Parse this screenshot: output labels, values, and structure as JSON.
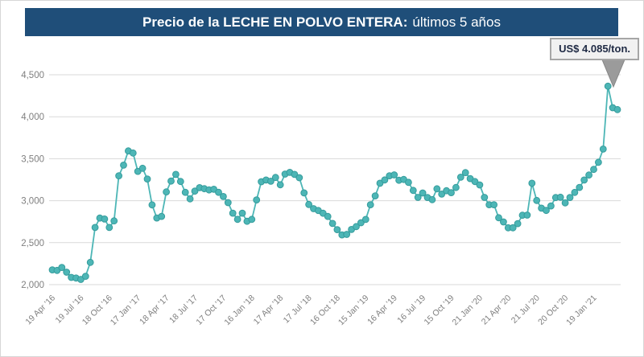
{
  "header": {
    "title_bold": "Precio de la LECHE EN POLVO ENTERA:",
    "title_regular": "últimos 5 años"
  },
  "callout": {
    "label": "US$ 4.085/ton."
  },
  "colors": {
    "banner_bg": "#1F4E79",
    "line": "#4DB6B6",
    "marker_edge": "#359C9C",
    "grid": "#D9D9D9",
    "axis_text": "#7F7F7F",
    "callout_bg": "#F1F1F1",
    "callout_border": "#A6A6A6",
    "pointer_gray": "#9B9B9B"
  },
  "chart_data": {
    "type": "line",
    "title": "Precio de la LECHE EN POLVO ENTERA: últimos 5 años",
    "unit": "US$/ton",
    "grid": true,
    "legend": false,
    "ylim": [
      2000,
      4500
    ],
    "y_ticks": [
      2000,
      2500,
      3000,
      3500,
      4000,
      4500
    ],
    "y_tick_labels": [
      "2,000",
      "2,500",
      "3,000",
      "3,500",
      "4,000",
      "4,500"
    ],
    "x_tick_every": 6,
    "x_tick_labels": [
      "19 Apr '16",
      "19 Jul '16",
      "18 Oct '16",
      "17 Jan '17",
      "18 Apr '17",
      "18 Jul '17",
      "17 Oct '17",
      "16 Jan '18",
      "17 Apr '18",
      "17 Jul '18",
      "16 Oct '18",
      "15 Jan '19",
      "16 Apr '19",
      "16 Jul '19",
      "15 Oct '19",
      "21 Jan '20",
      "21 Apr '20",
      "21 Jul '20",
      "20 Oct '20",
      "19 Jan '21"
    ],
    "last_value_label": "US$ 4.085/ton.",
    "last_value": 4085,
    "series": [
      {
        "name": "Precio leche en polvo entera (US$/ton)",
        "color": "#4DB6B6",
        "values": [
          2176,
          2170,
          2205,
          2148,
          2086,
          2079,
          2062,
          2100,
          2265,
          2681,
          2793,
          2782,
          2681,
          2760,
          3297,
          3423,
          3593,
          3568,
          3350,
          3386,
          3259,
          2950,
          2794,
          2813,
          3104,
          3234,
          3313,
          3229,
          3100,
          3022,
          3114,
          3155,
          3143,
          3128,
          3136,
          3100,
          3050,
          2977,
          2852,
          2778,
          2852,
          2755,
          2778,
          3010,
          3226,
          3246,
          3232,
          3277,
          3190,
          3317,
          3337,
          3313,
          3274,
          3093,
          2955,
          2905,
          2883,
          2851,
          2812,
          2729,
          2655,
          2593,
          2599,
          2657,
          2692,
          2738,
          2777,
          2952,
          3057,
          3208,
          3247,
          3297,
          3307,
          3243,
          3253,
          3218,
          3123,
          3039,
          3092,
          3038,
          3012,
          3142,
          3079,
          3119,
          3096,
          3157,
          3280,
          3334,
          3263,
          3228,
          3188,
          3039,
          2952,
          2952,
          2797,
          2747,
          2677,
          2677,
          2727,
          2827,
          2829,
          3208,
          3003,
          2911,
          2884,
          2938,
          3037,
          3041,
          2974,
          3038,
          3099,
          3158,
          3246,
          3306,
          3373,
          3458,
          3615,
          4364,
          4107,
          4085
        ]
      }
    ]
  }
}
